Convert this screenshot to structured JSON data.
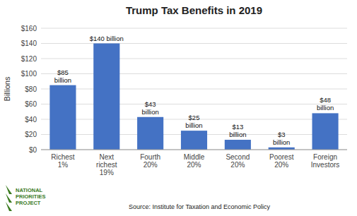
{
  "chart_data": {
    "type": "bar",
    "title": "Trump Tax Benefits in 2019",
    "categories": [
      "Richest\n1%",
      "Next\nrichest\n19%",
      "Fourth\n20%",
      "Middle\n20%",
      "Second\n20%",
      "Poorest\n20%",
      "Foreign\nInvestors"
    ],
    "values": [
      85,
      140,
      43,
      25,
      13,
      3,
      48
    ],
    "value_labels": [
      "$85\nbillion",
      "$140 billion",
      "$43\nbillion",
      "$25\nbillion",
      "$13\nbillion",
      "$3\nbillion",
      "$48\nbillion"
    ],
    "data_labels": true,
    "color": "#4472C4",
    "ylabel": "Billions",
    "ylim": [
      0,
      160
    ],
    "yticks": [
      {
        "value": 0,
        "label": "$0"
      },
      {
        "value": 20,
        "label": "$20"
      },
      {
        "value": 40,
        "label": "$40"
      },
      {
        "value": 60,
        "label": "$60"
      },
      {
        "value": 80,
        "label": "$80"
      },
      {
        "value": 100,
        "label": "$100"
      },
      {
        "value": 120,
        "label": "$120"
      },
      {
        "value": 140,
        "label": "$140"
      },
      {
        "value": 160,
        "label": "$160"
      }
    ],
    "grid": true,
    "annotations": [
      {
        "text": "Source:  Institute for Taxation and Economic Policy"
      },
      {
        "text": "NATIONAL\nPRIORITIES\nPROJECT",
        "color": "#3a7a1e"
      }
    ]
  }
}
